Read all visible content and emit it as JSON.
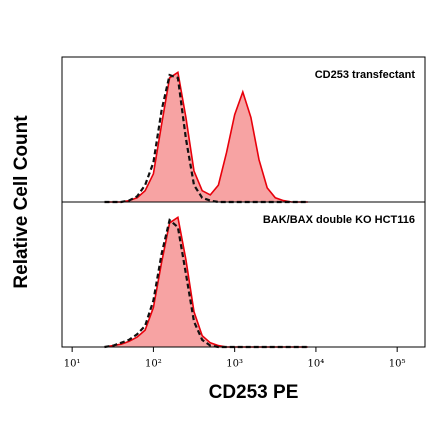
{
  "chart_data": [
    {
      "type": "histogram-overlay",
      "title": "CD253 transfectant",
      "ylabel": "Relative Cell Count",
      "log_x": true,
      "xlim": [
        7.5,
        220000
      ],
      "ylim": [
        0,
        100
      ],
      "x": [
        25,
        32,
        40,
        50,
        63,
        79,
        100,
        126,
        158,
        200,
        251,
        316,
        398,
        501,
        631,
        794,
        1000,
        1259,
        1585,
        1995,
        2512,
        3162,
        3981,
        5012,
        6310,
        7943
      ],
      "series": [
        {
          "color": "#e8000b",
          "fill": "#f7a3a3",
          "dashed": false,
          "values": [
            0,
            0,
            0,
            1,
            3,
            8,
            20,
            55,
            88,
            92,
            60,
            22,
            8,
            5,
            12,
            35,
            62,
            78,
            60,
            30,
            10,
            3,
            1,
            0,
            0,
            0
          ]
        },
        {
          "color": "#111111",
          "dashed": true,
          "values": [
            0,
            0,
            0,
            1,
            4,
            12,
            28,
            65,
            90,
            88,
            45,
            12,
            3,
            1,
            0,
            0,
            0,
            0,
            0,
            0,
            0,
            0,
            0,
            0,
            0,
            0
          ]
        }
      ]
    },
    {
      "type": "histogram-overlay",
      "title": "BAK/BAX double KO HCT116",
      "xlabel": "CD253 PE",
      "log_x": true,
      "xlim": [
        7.5,
        220000
      ],
      "ylim": [
        0,
        100
      ],
      "xticks": [
        {
          "value": 10,
          "label": "10¹"
        },
        {
          "value": 100,
          "label": "10²"
        },
        {
          "value": 1000,
          "label": "10³"
        },
        {
          "value": 10000,
          "label": "10⁴"
        },
        {
          "value": 100000,
          "label": "10⁵"
        }
      ],
      "x": [
        25,
        32,
        40,
        50,
        63,
        79,
        100,
        126,
        158,
        200,
        251,
        316,
        398,
        501,
        631,
        794,
        1000,
        1259,
        1585,
        1995,
        2512,
        3162,
        3981,
        5012,
        6310,
        7943
      ],
      "series": [
        {
          "color": "#e8000b",
          "fill": "#f7a3a3",
          "dashed": false,
          "values": [
            0,
            1,
            2,
            4,
            7,
            12,
            28,
            60,
            88,
            92,
            62,
            25,
            8,
            3,
            1,
            0,
            0,
            0,
            0,
            0,
            0,
            0,
            0,
            0,
            0,
            0
          ]
        },
        {
          "color": "#111111",
          "dashed": true,
          "values": [
            0,
            1,
            3,
            5,
            9,
            15,
            33,
            66,
            90,
            85,
            52,
            18,
            5,
            1,
            0,
            0,
            0,
            0,
            0,
            0,
            0,
            0,
            0,
            0,
            0,
            0
          ]
        }
      ]
    }
  ]
}
